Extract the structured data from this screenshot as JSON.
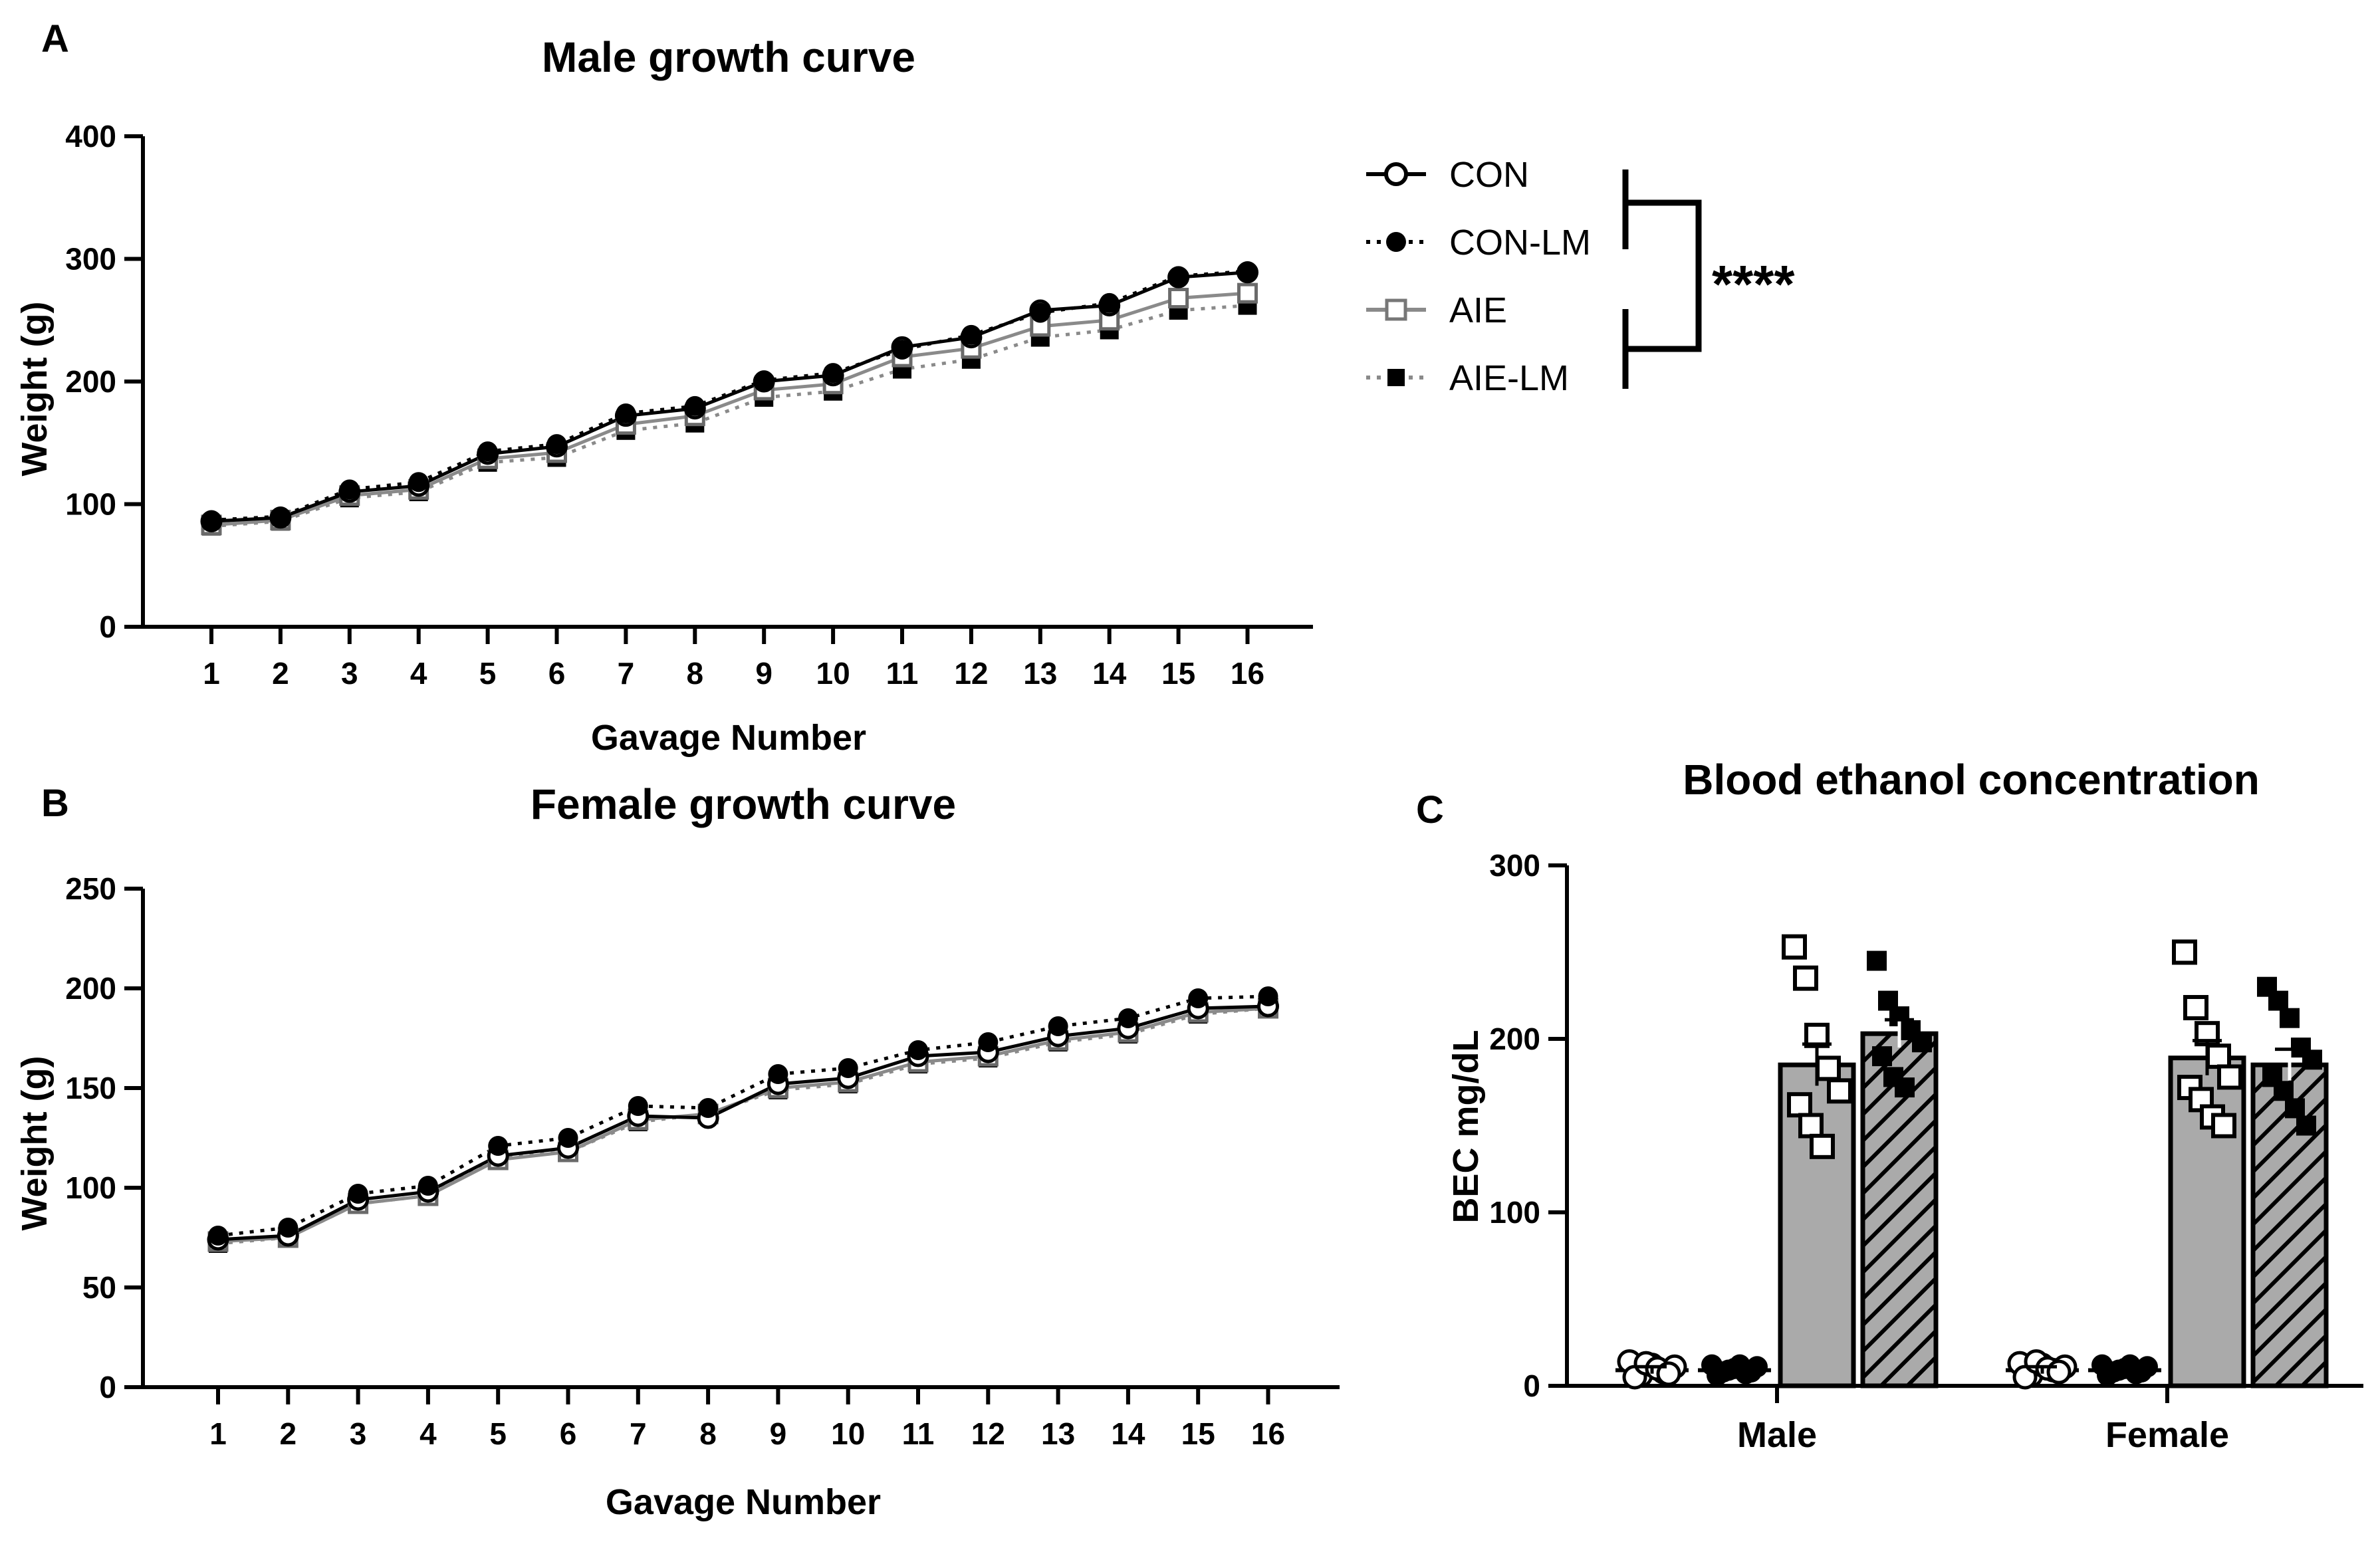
{
  "panel_labels": {
    "a": "A",
    "b": "B",
    "c": "C"
  },
  "legend": {
    "entries": [
      "CON",
      "CON-LM",
      "AIE",
      "AIE-LM"
    ],
    "significance": "****"
  },
  "colors": {
    "black": "#000000",
    "gray": "#8a8a8a",
    "bar_fill": "#aaaaaa"
  },
  "chart_data": [
    {
      "id": "A",
      "type": "line",
      "title": "Male growth curve",
      "xlabel": "Gavage Number",
      "ylabel": "Weight (g)",
      "x": [
        1,
        2,
        3,
        4,
        5,
        6,
        7,
        8,
        9,
        10,
        11,
        12,
        13,
        14,
        15,
        16
      ],
      "ylim": [
        0,
        400
      ],
      "yticks": [
        0,
        100,
        200,
        300,
        400
      ],
      "series": [
        {
          "name": "CON",
          "values": [
            86,
            89,
            110,
            115,
            141,
            147,
            172,
            178,
            200,
            205,
            228,
            236,
            258,
            262,
            285,
            289
          ]
        },
        {
          "name": "CON-LM",
          "values": [
            87,
            90,
            112,
            118,
            143,
            149,
            174,
            180,
            201,
            207,
            226,
            238,
            256,
            264,
            286,
            290
          ]
        },
        {
          "name": "AIE",
          "values": [
            83,
            87,
            107,
            112,
            137,
            142,
            165,
            172,
            193,
            198,
            220,
            227,
            245,
            250,
            268,
            272
          ]
        },
        {
          "name": "AIE-LM",
          "values": [
            82,
            86,
            105,
            110,
            134,
            138,
            160,
            166,
            187,
            192,
            210,
            218,
            236,
            242,
            258,
            262
          ]
        }
      ]
    },
    {
      "id": "B",
      "type": "line",
      "title": "Female growth curve",
      "xlabel": "Gavage Number",
      "ylabel": "Weight (g)",
      "x": [
        1,
        2,
        3,
        4,
        5,
        6,
        7,
        8,
        9,
        10,
        11,
        12,
        13,
        14,
        15,
        16
      ],
      "ylim": [
        0,
        250
      ],
      "yticks": [
        0,
        50,
        100,
        150,
        200,
        250
      ],
      "series": [
        {
          "name": "CON",
          "values": [
            74,
            76,
            94,
            98,
            116,
            120,
            136,
            135,
            152,
            155,
            166,
            168,
            176,
            180,
            190,
            191
          ]
        },
        {
          "name": "CON-LM",
          "values": [
            76,
            80,
            97,
            101,
            121,
            125,
            141,
            140,
            157,
            160,
            169,
            173,
            181,
            185,
            195,
            196
          ]
        },
        {
          "name": "AIE",
          "values": [
            73,
            75,
            92,
            96,
            114,
            118,
            134,
            137,
            150,
            153,
            163,
            166,
            174,
            178,
            188,
            190
          ]
        },
        {
          "name": "AIE-LM",
          "values": [
            72,
            75,
            92,
            96,
            115,
            118,
            133,
            137,
            149,
            152,
            162,
            165,
            173,
            177,
            187,
            190
          ]
        }
      ]
    },
    {
      "id": "C",
      "type": "bar",
      "title": "Blood ethanol concentration",
      "xlabel": "",
      "ylabel": "BEC mg/dL",
      "categories": [
        "Male",
        "Female"
      ],
      "ylim": [
        0,
        300
      ],
      "yticks": [
        0,
        100,
        200,
        300
      ],
      "series": [
        {
          "name": "CON",
          "values": [
            9,
            9
          ],
          "error": [
            2,
            2
          ],
          "points": [
            [
              14,
              6,
              12,
              8,
              11,
              5,
              13,
              10,
              7
            ],
            [
              13,
              6,
              12,
              9,
              11,
              5,
              14,
              10,
              8
            ]
          ]
        },
        {
          "name": "CON-LM",
          "values": [
            9,
            9
          ],
          "error": [
            2,
            2
          ],
          "points": [
            [
              12,
              8,
              10,
              7,
              11,
              6,
              9,
              12,
              8
            ],
            [
              12,
              8,
              10,
              7,
              11,
              6,
              9,
              12,
              8
            ]
          ]
        },
        {
          "name": "AIE",
          "values": [
            185,
            189
          ],
          "error": [
            12,
            10
          ],
          "points": [
            [
              253,
              235,
              202,
              183,
              170,
              162,
              150,
              138
            ],
            [
              250,
              218,
              203,
              190,
              178,
              172,
              165,
              155,
              150
            ]
          ]
        },
        {
          "name": "AIE-LM",
          "values": [
            203,
            185
          ],
          "error": [
            8,
            9
          ],
          "points": [
            [
              245,
              222,
              213,
              205,
              198,
              190,
              178,
              172
            ],
            [
              230,
              222,
              212,
              195,
              188,
              178,
              170,
              160,
              150
            ]
          ]
        }
      ]
    }
  ]
}
